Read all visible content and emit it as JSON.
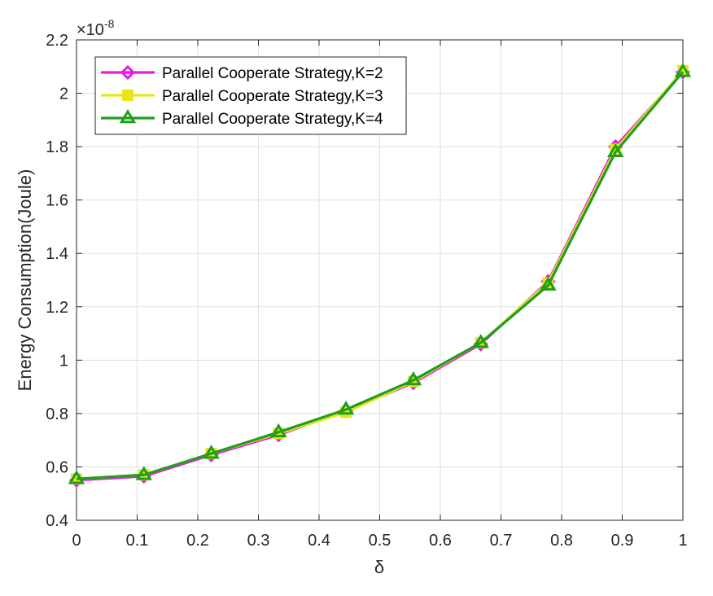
{
  "chart_data": {
    "type": "line",
    "title": "",
    "xlabel": "δ",
    "ylabel": "Energy Consumption(Joule)",
    "y_exponent_label": "×10",
    "y_exponent_power": "-8",
    "xlim": [
      0,
      1
    ],
    "ylim": [
      0.4,
      2.2
    ],
    "x_ticks": [
      0,
      0.1,
      0.2,
      0.3,
      0.4,
      0.5,
      0.6,
      0.7,
      0.8,
      0.9,
      1
    ],
    "x_tick_labels": [
      "0",
      "0.1",
      "0.2",
      "0.3",
      "0.4",
      "0.5",
      "0.6",
      "0.7",
      "0.8",
      "0.9",
      "1"
    ],
    "y_ticks": [
      0.4,
      0.6,
      0.8,
      1.0,
      1.2,
      1.4,
      1.6,
      1.8,
      2.0,
      2.2
    ],
    "y_tick_labels": [
      "0.4",
      "0.6",
      "0.8",
      "1",
      "1.2",
      "1.4",
      "1.6",
      "1.8",
      "2",
      "2.2"
    ],
    "grid": true,
    "legend_position": "top-left",
    "x": [
      0,
      0.1111,
      0.2222,
      0.3333,
      0.4444,
      0.5556,
      0.6667,
      0.7778,
      0.8889,
      1.0
    ],
    "series": [
      {
        "name": "Parallel Cooperate Strategy,K=2",
        "color": "#e619e6",
        "marker": "diamond",
        "values": [
          0.55,
          0.565,
          0.645,
          0.72,
          0.81,
          0.915,
          1.06,
          1.295,
          1.8,
          2.08
        ]
      },
      {
        "name": "Parallel Cooperate Strategy,K=3",
        "color": "#e6e619",
        "marker": "square",
        "values": [
          0.555,
          0.57,
          0.65,
          0.725,
          0.805,
          0.92,
          1.065,
          1.29,
          1.79,
          2.085
        ]
      },
      {
        "name": "Parallel Cooperate Strategy,K=4",
        "color": "#1f9e1f",
        "marker": "triangle",
        "values": [
          0.555,
          0.57,
          0.65,
          0.73,
          0.815,
          0.925,
          1.065,
          1.28,
          1.78,
          2.08
        ]
      }
    ]
  }
}
